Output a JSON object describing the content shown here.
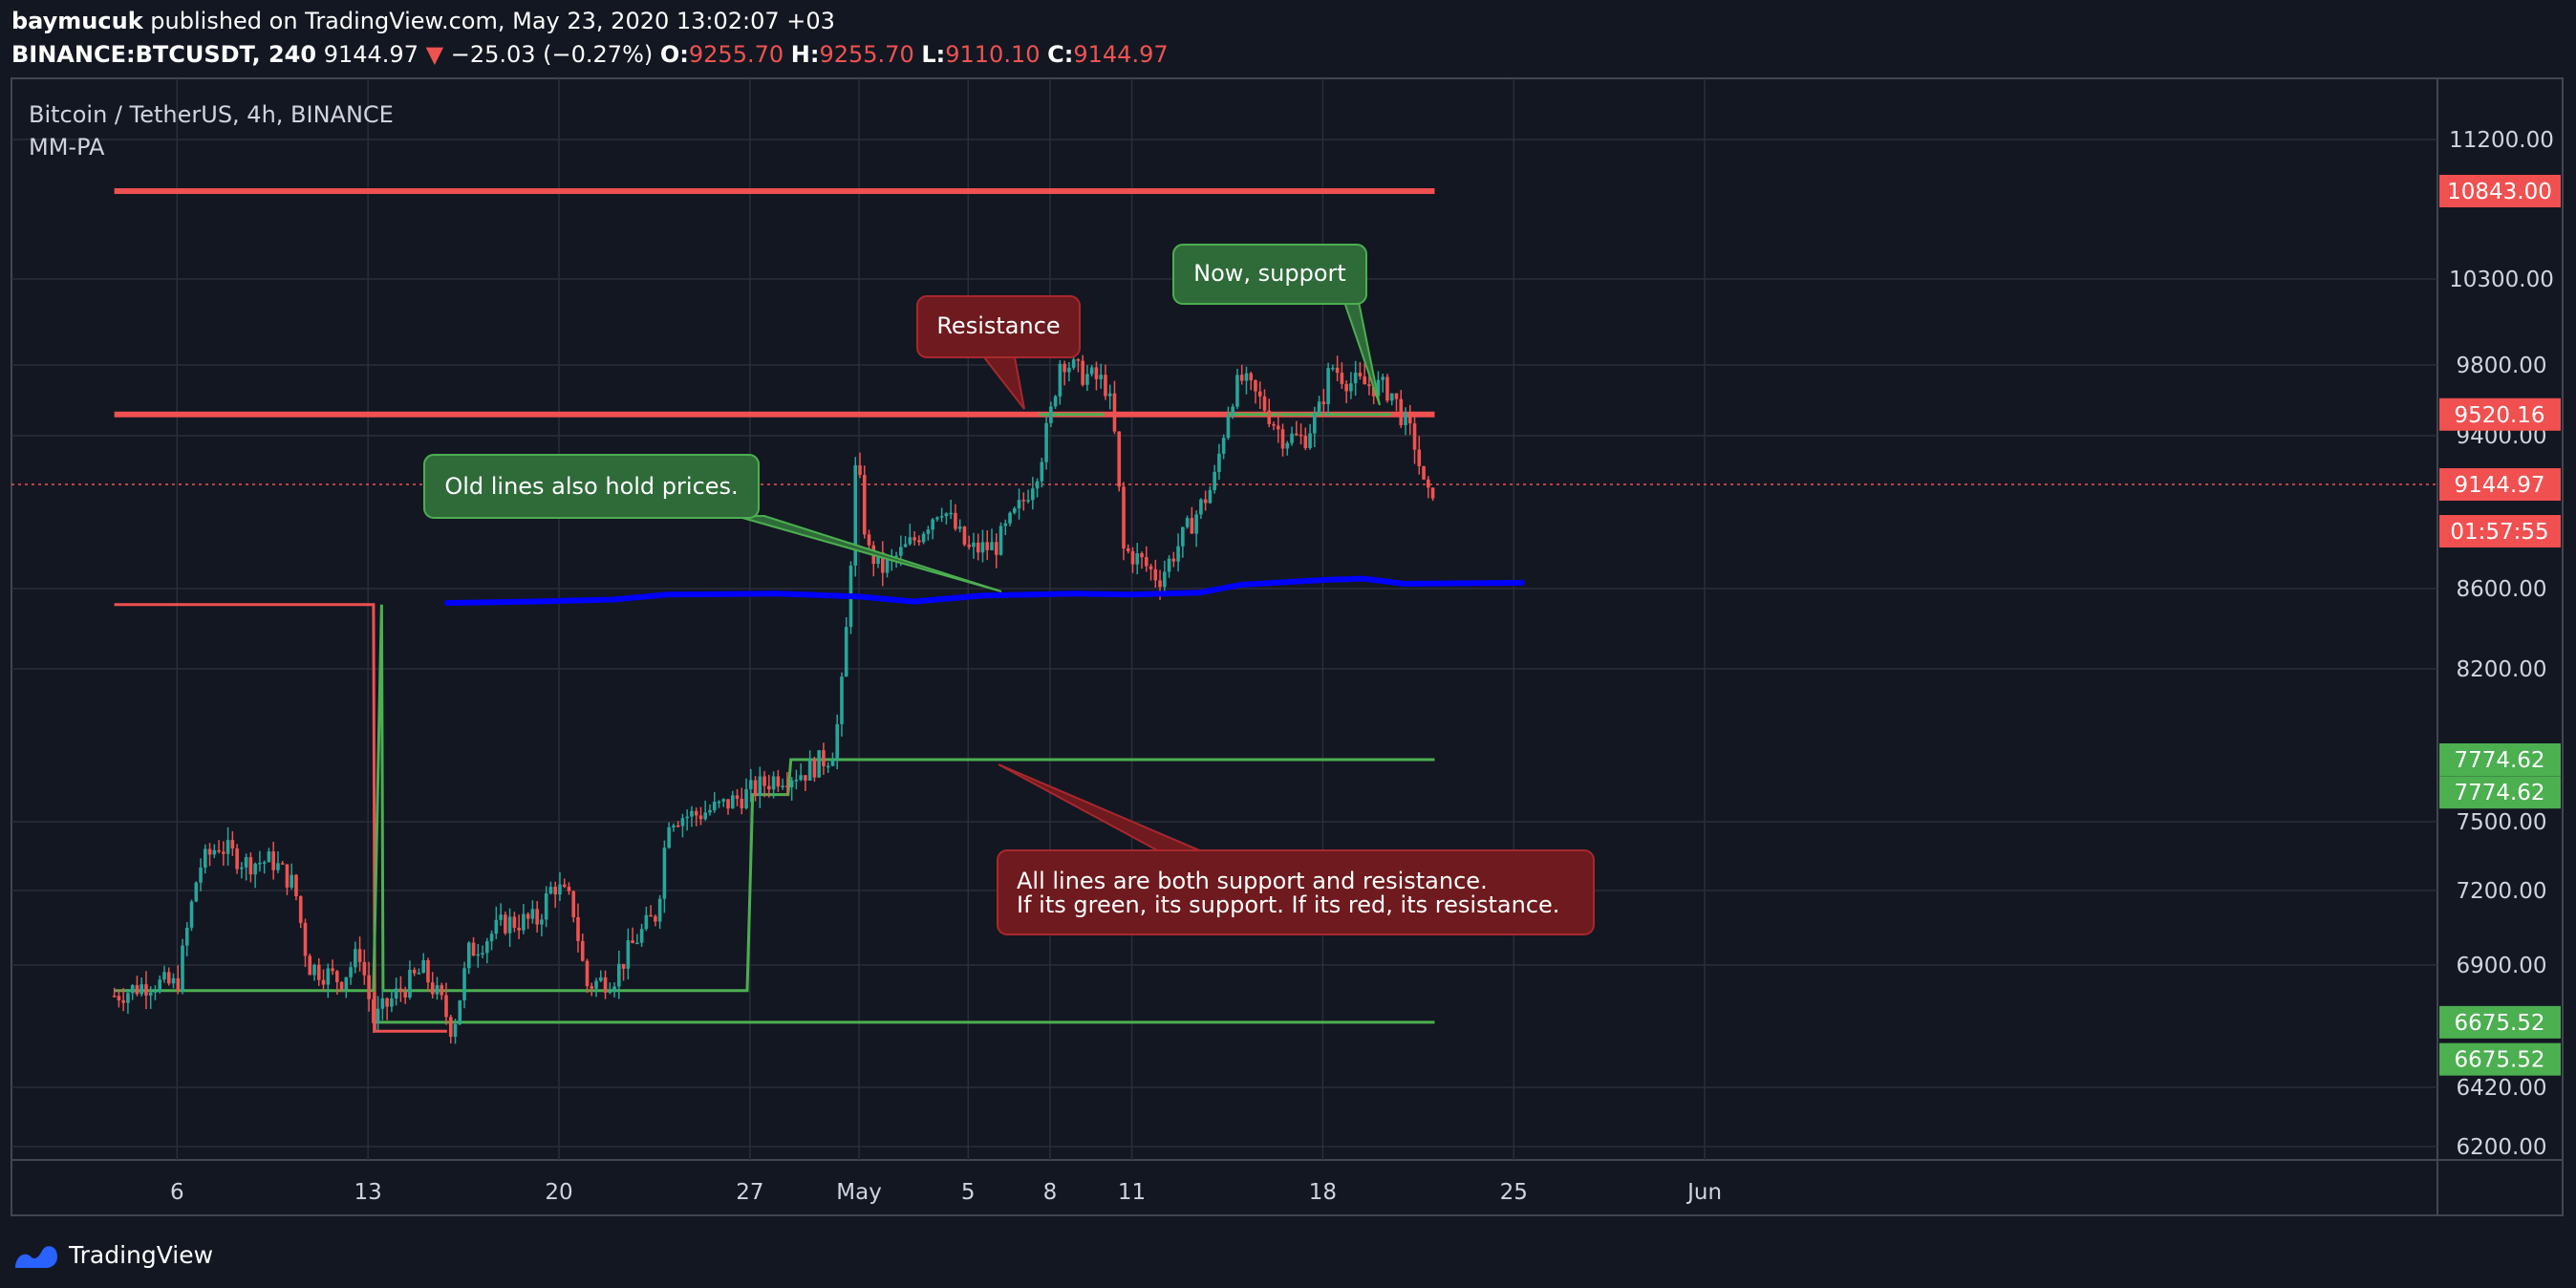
{
  "header": {
    "author": "baymucuk",
    "published_text": "published on TradingView.com, May 23, 2020 13:02:07 +03",
    "symbol": "BINANCE:BTCUSDT, 240",
    "last": "9144.97",
    "arrow": "▼",
    "change": "−25.03 (−0.27%)",
    "o_label": "O:",
    "o_value": "9255.70",
    "h_label": "H:",
    "h_value": "9255.70",
    "l_label": "L:",
    "l_value": "9110.10",
    "c_label": "C:",
    "c_value": "9144.97"
  },
  "chart_title": "Bitcoin / TetherUS, 4h, BINANCE",
  "indicator_label": "MM-PA",
  "footer": {
    "brand": "TradingView"
  },
  "colors": {
    "background": "#131722",
    "grid": "#2a2e39",
    "up": "#26a69a",
    "down": "#ef5350",
    "support": "#4caf50",
    "resistance": "#f05050",
    "ma": "#0000ff",
    "green_note_bg": "#2e6b39",
    "red_note_bg": "#6e1a1e"
  },
  "chart_data": {
    "type": "candlestick",
    "y_ticks": [
      "11200.00",
      "10300.00",
      "9800.00",
      "9400.00",
      "8600.00",
      "8200.00",
      "7500.00",
      "7200.00",
      "6900.00",
      "6420.00",
      "6200.00"
    ],
    "x_ticks": [
      {
        "label": "6",
        "day": 6
      },
      {
        "label": "13",
        "day": 13
      },
      {
        "label": "20",
        "day": 20
      },
      {
        "label": "27",
        "day": 27
      },
      {
        "label": "May",
        "day": 31
      },
      {
        "label": "5",
        "day": 35
      },
      {
        "label": "8",
        "day": 38
      },
      {
        "label": "11",
        "day": 41
      },
      {
        "label": "18",
        "day": 48
      },
      {
        "label": "25",
        "day": 55
      },
      {
        "label": "Jun",
        "day": 62
      }
    ],
    "price_labels": [
      {
        "text": "10843.00",
        "price": 10843,
        "color": "#f05050"
      },
      {
        "text": "9520.16",
        "price": 9520.16,
        "color": "#f05050"
      },
      {
        "text": "9144.97",
        "price": 9144.97,
        "color": "#f05050"
      },
      {
        "text": "01:57:55",
        "price": 8900,
        "color": "#f05050"
      },
      {
        "text": "7774.62",
        "price": 7774.62,
        "color": "#4caf50"
      },
      {
        "text": "7774.62",
        "price": 7630,
        "color": "#4caf50"
      },
      {
        "text": "6675.52",
        "price": 6675.52,
        "color": "#4caf50"
      },
      {
        "text": "6675.52",
        "price": 6530,
        "color": "#4caf50"
      }
    ],
    "horizontal_lines": [
      {
        "price": 10843,
        "from_day": 3.7,
        "to_day": 52.1,
        "color": "#f05050",
        "width": 6
      },
      {
        "price": 9520.16,
        "from_day": 3.7,
        "to_day": 52.1,
        "color": "#f05050",
        "width": 6
      },
      {
        "price": 7774.62,
        "from_day": 30.0,
        "to_day": 52.1,
        "color": "#4caf50",
        "width": 3
      },
      {
        "price": 6675.52,
        "from_day": 13.2,
        "to_day": 52.1,
        "color": "#4caf50",
        "width": 3
      }
    ],
    "step_lines": [
      {
        "color": "#f05050",
        "points": [
          [
            3.7,
            8520
          ],
          [
            13.2,
            8520
          ],
          [
            13.25,
            6640
          ],
          [
            15.9,
            6640
          ]
        ]
      },
      {
        "color": "#4caf50",
        "points": [
          [
            3.7,
            6800
          ],
          [
            13.2,
            6800
          ],
          [
            13.5,
            8520
          ],
          [
            13.55,
            6800
          ],
          [
            26.9,
            6800
          ],
          [
            27.1,
            7620
          ],
          [
            28.4,
            7620
          ],
          [
            28.5,
            7774.62
          ],
          [
            30.0,
            7774.62
          ]
        ]
      },
      {
        "color": "#4caf50",
        "points": [
          [
            37.6,
            9520.16
          ],
          [
            40.0,
            9520.16
          ]
        ]
      },
      {
        "color": "#4caf50",
        "points": [
          [
            44.5,
            9520.16
          ],
          [
            50.5,
            9520.16
          ]
        ]
      }
    ],
    "moving_average": [
      [
        15.9,
        8528
      ],
      [
        19.0,
        8535
      ],
      [
        22.0,
        8545
      ],
      [
        24.0,
        8570
      ],
      [
        28.0,
        8575
      ],
      [
        31.0,
        8560
      ],
      [
        33.0,
        8535
      ],
      [
        35.5,
        8565
      ],
      [
        39.0,
        8575
      ],
      [
        41.0,
        8570
      ],
      [
        43.5,
        8580
      ],
      [
        45.0,
        8620
      ],
      [
        48.0,
        8645
      ],
      [
        49.5,
        8652
      ],
      [
        51.0,
        8625
      ],
      [
        55.3,
        8630
      ]
    ],
    "candle_path": [
      [
        3.7,
        6780
      ],
      [
        5.0,
        6830
      ],
      [
        6.0,
        6820
      ],
      [
        6.8,
        7300
      ],
      [
        7.5,
        7400
      ],
      [
        8.5,
        7320
      ],
      [
        9.5,
        7330
      ],
      [
        10.3,
        7220
      ],
      [
        10.8,
        6900
      ],
      [
        12.0,
        6840
      ],
      [
        12.7,
        6950
      ],
      [
        13.2,
        6680
      ],
      [
        14.0,
        6780
      ],
      [
        15.0,
        6880
      ],
      [
        15.7,
        6750
      ],
      [
        16.1,
        6640
      ],
      [
        16.7,
        6950
      ],
      [
        18.0,
        7070
      ],
      [
        19.2,
        7080
      ],
      [
        19.8,
        7230
      ],
      [
        20.5,
        7140
      ],
      [
        21.0,
        6820
      ],
      [
        22.0,
        6850
      ],
      [
        22.8,
        7000
      ],
      [
        23.6,
        7110
      ],
      [
        24.0,
        7520
      ],
      [
        25.0,
        7530
      ],
      [
        26.0,
        7570
      ],
      [
        27.0,
        7630
      ],
      [
        28.0,
        7700
      ],
      [
        29.0,
        7720
      ],
      [
        30.0,
        7800
      ],
      [
        30.3,
        8000
      ],
      [
        30.6,
        8500
      ],
      [
        30.9,
        9300
      ],
      [
        31.3,
        8800
      ],
      [
        31.9,
        8700
      ],
      [
        33.0,
        8850
      ],
      [
        34.0,
        9040
      ],
      [
        35.0,
        8800
      ],
      [
        36.0,
        8820
      ],
      [
        37.0,
        9050
      ],
      [
        37.6,
        9250
      ],
      [
        38.0,
        9500
      ],
      [
        38.4,
        9850
      ],
      [
        39.0,
        9760
      ],
      [
        40.0,
        9700
      ],
      [
        40.3,
        9520
      ],
      [
        40.7,
        8800
      ],
      [
        41.3,
        8750
      ],
      [
        42.0,
        8650
      ],
      [
        43.0,
        8900
      ],
      [
        44.0,
        9150
      ],
      [
        44.6,
        9600
      ],
      [
        45.0,
        9720
      ],
      [
        45.8,
        9580
      ],
      [
        46.5,
        9400
      ],
      [
        47.3,
        9380
      ],
      [
        47.9,
        9550
      ],
      [
        48.3,
        9800
      ],
      [
        49.0,
        9700
      ],
      [
        50.0,
        9680
      ],
      [
        50.5,
        9650
      ],
      [
        50.9,
        9510
      ],
      [
        51.4,
        9350
      ],
      [
        51.8,
        9050
      ],
      [
        52.1,
        9145
      ]
    ],
    "annotations": [
      {
        "text": "Resistance",
        "kind": "red"
      },
      {
        "text": "Now, support",
        "kind": "green"
      },
      {
        "text": "Old lines also hold prices.",
        "kind": "green"
      },
      {
        "text": "All lines are both support and resistance.",
        "text2": "If its green, its support. If its red, its resistance.",
        "kind": "red"
      }
    ]
  }
}
